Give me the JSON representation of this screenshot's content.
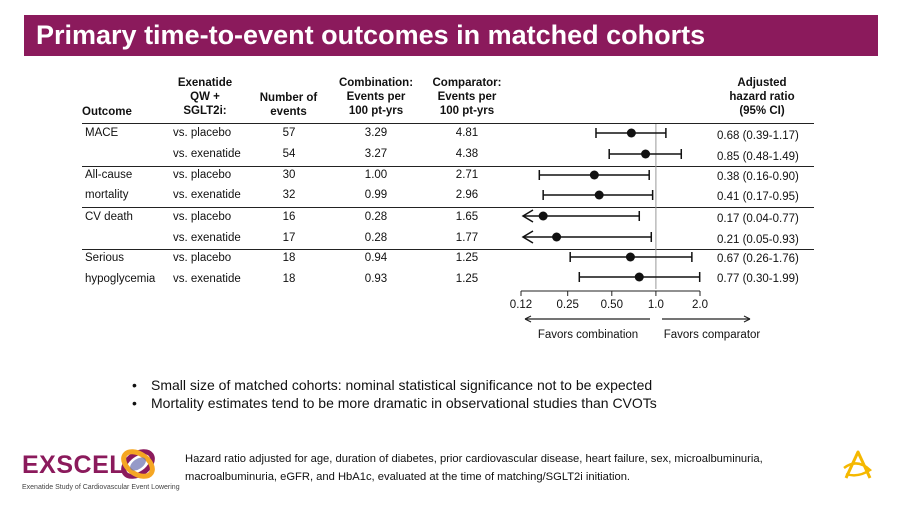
{
  "slide": {
    "title": "Primary time-to-event outcomes in matched cohorts"
  },
  "table": {
    "headers": {
      "outcome": "Outcome",
      "group": [
        "Exenatide",
        "QW +",
        "SGLT2i:"
      ],
      "number": [
        "Number of",
        "events"
      ],
      "combination": [
        "Combination:",
        "Events per",
        "100 pt-yrs"
      ],
      "comparator": [
        "Comparator:",
        "Events per",
        "100 pt-yrs"
      ],
      "hr": [
        "Adjusted",
        "hazard ratio",
        "(95% CI)"
      ]
    },
    "rows": [
      {
        "outcome": "MACE",
        "group": "vs. placebo",
        "events": "57",
        "combo": "3.29",
        "comp": "4.81",
        "hr_text": "0.68 (0.39-1.17)",
        "hr": 0.68,
        "lo": 0.39,
        "hi": 1.17,
        "arrow": false
      },
      {
        "outcome": "",
        "group": "vs. exenatide",
        "events": "54",
        "combo": "3.27",
        "comp": "4.38",
        "hr_text": "0.85 (0.48-1.49)",
        "hr": 0.85,
        "lo": 0.48,
        "hi": 1.49,
        "arrow": false
      },
      {
        "outcome": "All-cause",
        "group": "vs. placebo",
        "events": "30",
        "combo": "1.00",
        "comp": "2.71",
        "hr_text": "0.38 (0.16-0.90)",
        "hr": 0.38,
        "lo": 0.16,
        "hi": 0.9,
        "arrow": false
      },
      {
        "outcome": "mortality",
        "group": "vs. exenatide",
        "events": "32",
        "combo": "0.99",
        "comp": "2.96",
        "hr_text": "0.41 (0.17-0.95)",
        "hr": 0.41,
        "lo": 0.17,
        "hi": 0.95,
        "arrow": false
      },
      {
        "outcome": "CV death",
        "group": "vs. placebo",
        "events": "16",
        "combo": "0.28",
        "comp": "1.65",
        "hr_text": "0.17 (0.04-0.77)",
        "hr": 0.17,
        "lo": 0.04,
        "hi": 0.77,
        "arrow": true
      },
      {
        "outcome": "",
        "group": "vs. exenatide",
        "events": "17",
        "combo": "0.28",
        "comp": "1.77",
        "hr_text": "0.21 (0.05-0.93)",
        "hr": 0.21,
        "lo": 0.05,
        "hi": 0.93,
        "arrow": true
      },
      {
        "outcome": "Serious",
        "group": "vs. placebo",
        "events": "18",
        "combo": "0.94",
        "comp": "1.25",
        "hr_text": "0.67 (0.26-1.76)",
        "hr": 0.67,
        "lo": 0.26,
        "hi": 1.76,
        "arrow": false
      },
      {
        "outcome": "hypoglycemia",
        "group": "vs. exenatide",
        "events": "18",
        "combo": "0.93",
        "comp": "1.25",
        "hr_text": "0.77 (0.30-1.99)",
        "hr": 0.77,
        "lo": 0.3,
        "hi": 1.99,
        "arrow": false
      }
    ]
  },
  "forest": {
    "scale": "log",
    "ticks": [
      {
        "value": 0.12,
        "label": "0.12"
      },
      {
        "value": 0.25,
        "label": "0.25"
      },
      {
        "value": 0.5,
        "label": "0.50"
      },
      {
        "value": 1.0,
        "label": "1.0"
      },
      {
        "value": 2.0,
        "label": "2.0"
      }
    ],
    "reference": 1.0,
    "favors_left": "Favors combination",
    "favors_right": "Favors comparator"
  },
  "bullets": [
    "Small size of matched cohorts: nominal statistical significance not to be expected",
    "Mortality estimates tend to be more dramatic in observational studies than CVOTs"
  ],
  "bullet_glyph": "•",
  "logo": {
    "word": "EXSCEL",
    "subtitle": "Exenatide Study of Cardiovascular Event Lowering"
  },
  "footnote": "Hazard ratio adjusted for age, duration of diabetes, prior cardiovascular disease, heart failure, sex, microalbuminuria, macroalbuminuria, eGFR, and HbA1c, evaluated at the time of matching/SGLT2i initiation.",
  "colors": {
    "banner": "#8b1a5c",
    "logo_primary": "#8b1a5c",
    "logo_accent": "#f5a623",
    "brand_icon": "#f5b800"
  }
}
